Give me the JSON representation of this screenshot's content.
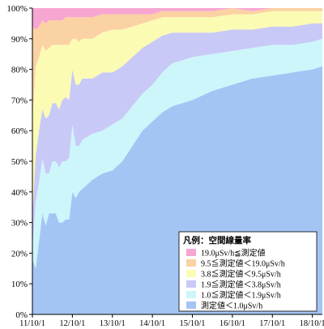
{
  "chart_data": {
    "type": "area",
    "stacked": true,
    "percent": true,
    "x": [
      "11/10/1",
      "11/11/1",
      "11/12/1",
      "12/1/1",
      "12/2/1",
      "12/3/1",
      "12/4/1",
      "12/5/1",
      "12/6/1",
      "12/7/1",
      "12/8/1",
      "12/9/1",
      "12/10/1",
      "12/11/1",
      "12/12/1",
      "13/1/1",
      "13/4/1",
      "13/7/1",
      "13/10/1",
      "14/1/1",
      "14/4/1",
      "14/7/1",
      "14/10/1",
      "15/1/1",
      "15/4/1",
      "15/7/1",
      "15/10/1",
      "16/4/1",
      "16/10/1",
      "17/4/1",
      "17/10/1",
      "18/4/1",
      "18/10/1",
      "19/1/1"
    ],
    "series": [
      {
        "name": "測定値＜1.0μSv/h",
        "color": "#a4c5f4",
        "values": [
          18,
          15,
          24,
          33,
          29,
          33,
          33,
          33,
          30,
          30,
          31,
          31,
          40,
          38,
          40,
          41,
          44,
          46,
          47,
          50,
          55,
          60,
          63,
          66,
          68,
          69,
          70,
          73,
          75,
          77,
          78,
          79,
          80,
          81
        ]
      },
      {
        "name": "1.0≦測定値＜1.9μSv/h",
        "color": "#cdf6fb",
        "values": [
          4,
          22,
          19,
          18,
          17,
          13,
          17,
          17,
          18,
          20,
          19,
          20,
          22,
          17,
          15,
          16,
          15,
          14,
          15,
          14,
          13,
          12,
          12,
          13,
          14,
          14,
          14,
          12,
          11,
          10,
          10,
          9,
          9,
          9
        ]
      },
      {
        "name": "1.9≦測定値＜3.8μSv/h",
        "color": "#c9c9f7",
        "values": [
          11,
          15,
          17,
          16,
          18,
          19,
          19,
          19,
          19,
          20,
          21,
          19,
          18,
          20,
          20,
          20,
          18,
          19,
          17,
          17,
          16,
          15,
          14,
          12,
          10,
          9,
          8,
          7,
          7,
          6,
          6,
          6,
          6,
          5
        ]
      },
      {
        "name": "3.8≦測定値＜9.5μSv/h",
        "color": "#fbfbb4",
        "values": [
          31,
          29,
          24,
          21,
          22,
          22,
          19,
          19,
          21,
          18,
          17,
          18,
          10,
          15,
          14,
          13,
          13,
          13,
          14,
          12,
          10,
          8,
          7,
          6,
          5,
          5,
          5,
          5,
          5,
          5,
          5,
          5,
          4,
          4
        ]
      },
      {
        "name": "9.5≦測定値＜19.0μSv/h",
        "color": "#fbd2a4",
        "values": [
          30,
          12,
          10,
          8,
          9,
          9,
          8,
          8,
          8,
          8,
          9,
          9,
          7,
          7,
          8,
          7,
          7,
          6,
          5,
          5,
          4,
          3,
          2,
          2,
          2,
          2,
          2,
          2,
          2,
          1,
          1,
          1,
          1,
          1
        ]
      },
      {
        "name": "19.0μSv/h≦測定値",
        "color": "#f7a6d2",
        "values": [
          6,
          7,
          6,
          4,
          5,
          4,
          4,
          4,
          4,
          4,
          3,
          3,
          3,
          3,
          3,
          3,
          3,
          2,
          2,
          2,
          2,
          2,
          2,
          1,
          1,
          1,
          1,
          1,
          0,
          1,
          0,
          0,
          0,
          0
        ]
      }
    ],
    "x_tick_labels": [
      "11/10/1",
      "12/10/1",
      "13/10/1",
      "14/10/1",
      "15/10/1",
      "16/10/1",
      "17/10/1",
      "18/10/1"
    ],
    "y_tick_labels": [
      "0%",
      "10%",
      "20%",
      "30%",
      "40%",
      "50%",
      "60%",
      "70%",
      "80%",
      "90%",
      "100%"
    ],
    "ylim": [
      0,
      100
    ],
    "grid": false,
    "legend": {
      "title": "凡例：空間線量率",
      "position": "bottom-right",
      "order": [
        5,
        4,
        3,
        2,
        1,
        0
      ]
    }
  }
}
